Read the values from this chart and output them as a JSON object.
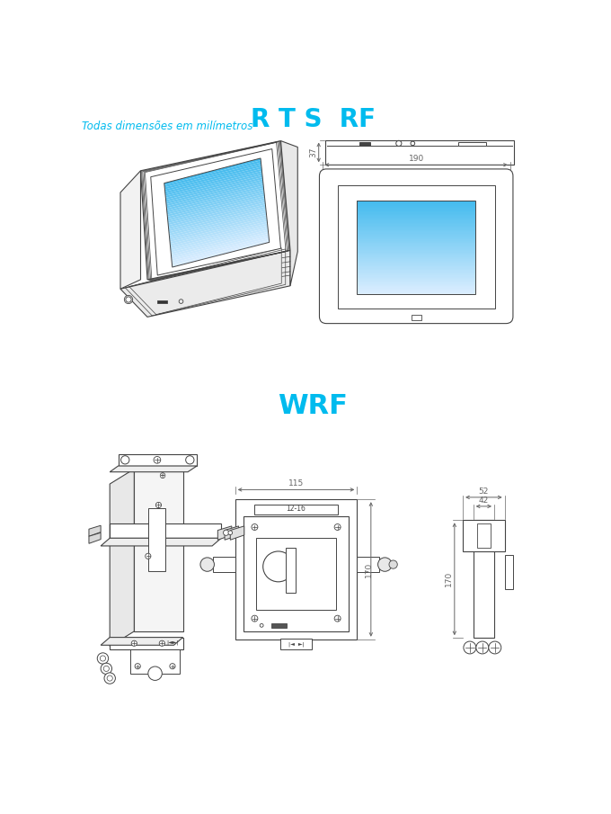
{
  "title_rts": "R T S  RF",
  "title_wrf": "WRF",
  "subtitle": "Todas dimensões em milímetros",
  "title_color": "#00BBEE",
  "subtitle_color": "#00BBEE",
  "bg_color": "#FFFFFF",
  "dim_190": "190",
  "dim_37": "37",
  "dim_170": "170",
  "dim_115": "115",
  "dim_42": "42",
  "dim_52": "52",
  "lc": "#444444",
  "dc": "#666666",
  "screen_top": "#44BBEE",
  "screen_bot": "#DDEEFF"
}
